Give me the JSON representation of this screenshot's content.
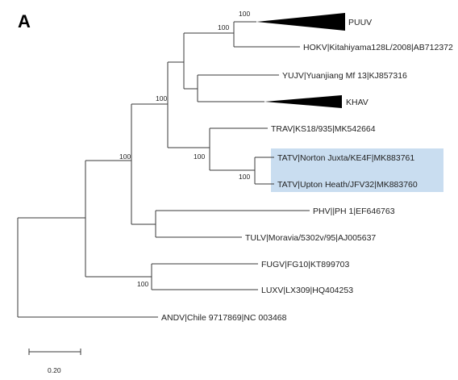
{
  "panel_label": "A",
  "highlight_color": "#c9ddf0",
  "taxa": {
    "puuv": "PUUV",
    "hokv": "HOKV|Kitahiyama128L/2008|AB712372",
    "yujv": "YUJV|Yuanjiang Mf 13|KJ857316",
    "khav": "KHAV",
    "trav": "TRAV|KS18/935|MK542664",
    "tatv1": "TATV|Norton Juxta/KE4F|MK883761",
    "tatv2": "TATV|Upton Heath/JFV32|MK883760",
    "phv": "PHV||PH 1|EF646763",
    "tulv": "TULV|Moravia/5302v/95|AJ005637",
    "fugv": "FUGV|FG10|KT899703",
    "luxv": "LUXV|LX309|HQ404253",
    "andv": "ANDV|Chile 9717869|NC 003468"
  },
  "bootstrap": {
    "puuv_node": "100",
    "puuv_hokv": "100",
    "yujv_khav_group": "100",
    "trav_tatv": "100",
    "tatv": "100",
    "main": "100",
    "fugv_luxv": "100"
  },
  "scale_bar": {
    "label": "0.20"
  }
}
